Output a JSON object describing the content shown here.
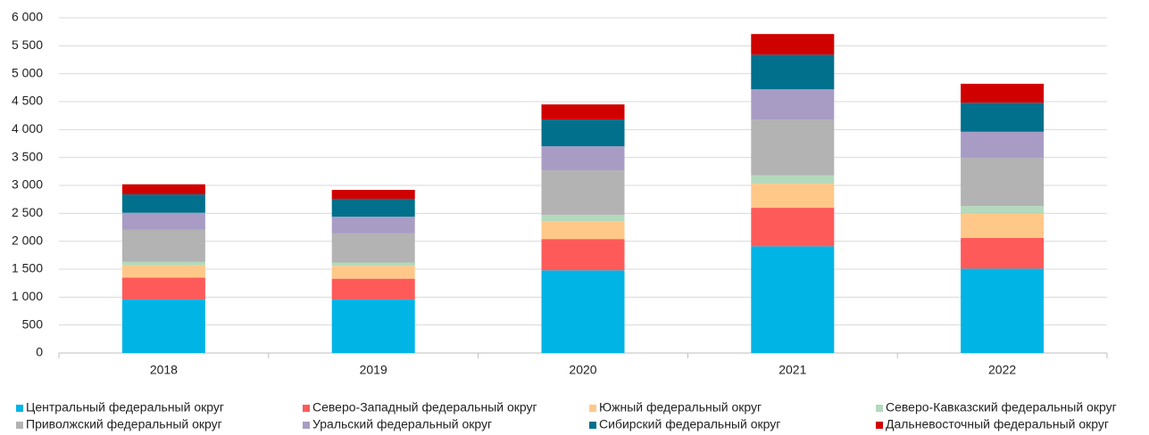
{
  "chart_data": {
    "type": "stacked_bar",
    "categories": [
      "2018",
      "2019",
      "2020",
      "2021",
      "2022"
    ],
    "series": [
      {
        "name": "Центральный федеральный округ",
        "color": "#00b4e6",
        "values": [
          960,
          960,
          1480,
          1910,
          1510
        ]
      },
      {
        "name": "Северо-Западный федеральный округ",
        "color": "#ff5a5a",
        "values": [
          390,
          370,
          560,
          690,
          550
        ]
      },
      {
        "name": "Южный федеральный округ",
        "color": "#ffc888",
        "values": [
          220,
          230,
          320,
          430,
          430
        ]
      },
      {
        "name": "Северо-Кавказский федеральный округ",
        "color": "#b4d9bc",
        "values": [
          60,
          60,
          110,
          150,
          140
        ]
      },
      {
        "name": "Приволжский федеральный округ",
        "color": "#b3b3b3",
        "values": [
          580,
          520,
          800,
          1000,
          860
        ]
      },
      {
        "name": "Уральский федеральный округ",
        "color": "#a89cc4",
        "values": [
          300,
          300,
          430,
          540,
          470
        ]
      },
      {
        "name": "Сибирский федеральный округ",
        "color": "#00708c",
        "values": [
          330,
          320,
          480,
          620,
          520
        ]
      },
      {
        "name": "Дальневосточный федеральный округ",
        "color": "#d10000",
        "values": [
          180,
          160,
          270,
          370,
          340
        ]
      }
    ],
    "ylim": [
      0,
      6000
    ],
    "yticks": [
      0,
      500,
      {
        "value": 1000,
        "label": "1 000"
      },
      {
        "value": 1500,
        "label": "1 500"
      },
      {
        "value": 2000,
        "label": "2 000"
      },
      {
        "value": 2500,
        "label": "2 500"
      },
      {
        "value": 3000,
        "label": "3 000"
      },
      {
        "value": 3500,
        "label": "3 500"
      },
      {
        "value": 4000,
        "label": "4 000"
      },
      {
        "value": 4500,
        "label": "4 500"
      },
      {
        "value": 5000,
        "label": "5 000"
      },
      {
        "value": 5500,
        "label": "5 500"
      },
      {
        "value": 6000,
        "label": "6 000"
      }
    ],
    "grid": true,
    "legend": "bottom"
  }
}
